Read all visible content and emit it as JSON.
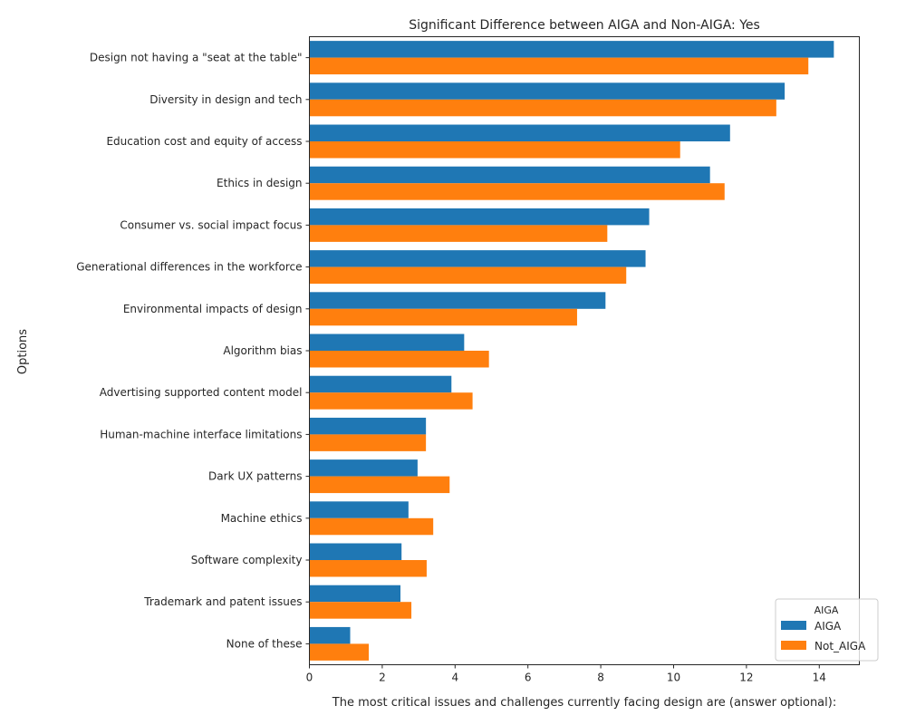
{
  "chart_data": {
    "type": "bar",
    "orientation": "horizontal",
    "title": "Significant Difference between AIGA and Non-AIGA: Yes",
    "xlabel": "The most critical issues and challenges currently facing design are (answer optional):",
    "ylabel": "Options",
    "xlim": [
      0,
      15.1
    ],
    "xticks": [
      0,
      2,
      4,
      6,
      8,
      10,
      12,
      14
    ],
    "grid": false,
    "legend": {
      "title": "AIGA",
      "placement": "lower right"
    },
    "categories": [
      "Design not having a \"seat at the table\"",
      "Diversity in design and tech",
      "Education cost and equity of access",
      "Ethics in design",
      "Consumer vs. social impact focus",
      "Generational differences in the workforce",
      "Environmental impacts of design",
      "Algorithm bias",
      "Advertising supported content model",
      "Human-machine interface limitations",
      "Dark UX patterns",
      "Machine ethics",
      "Software complexity",
      "Trademark and patent issues",
      "None of these"
    ],
    "series": [
      {
        "name": "AIGA",
        "color": "#1f77b4",
        "values": [
          14.4,
          13.05,
          11.55,
          11.0,
          9.33,
          9.23,
          8.13,
          4.25,
          3.9,
          3.2,
          2.97,
          2.72,
          2.53,
          2.5,
          1.12
        ]
      },
      {
        "name": "Not_AIGA",
        "color": "#ff7f0e",
        "values": [
          13.7,
          12.82,
          10.18,
          11.4,
          8.18,
          8.7,
          7.35,
          4.93,
          4.48,
          3.2,
          3.85,
          3.4,
          3.22,
          2.8,
          1.63
        ]
      }
    ]
  }
}
